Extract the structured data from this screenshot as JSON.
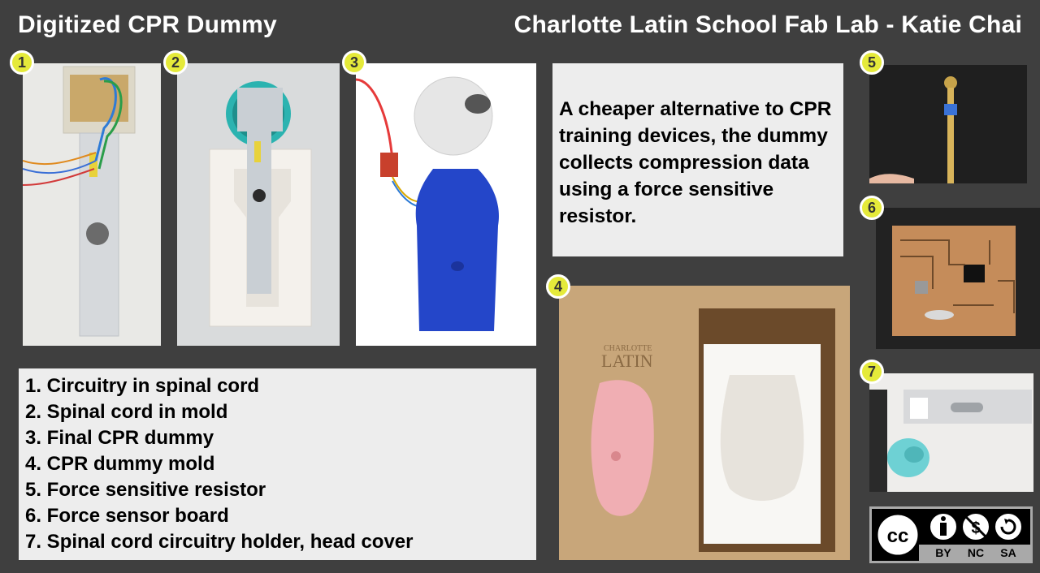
{
  "header": {
    "title_left": "Digitized CPR Dummy",
    "title_right": "Charlotte Latin School Fab Lab - Katie Chai"
  },
  "badges": [
    "1",
    "2",
    "3",
    "4",
    "5",
    "6",
    "7"
  ],
  "description": "A cheaper alternative to CPR training devices, the dummy collects compression data using a force sensitive resistor.",
  "list_items": [
    "1. Circuitry in spinal cord",
    "2. Spinal cord in mold",
    "3. Final CPR dummy",
    "4. CPR dummy mold",
    "5. Force sensitive resistor",
    "6. Force sensor board",
    "7. Spinal cord circuitry holder, head cover"
  ],
  "license": {
    "labels": [
      "BY",
      "NC",
      "SA"
    ],
    "cc_mark": "cc"
  },
  "photos": {
    "mold_label_line1": "CHARLOTTE",
    "mold_label_line2": "LATIN"
  }
}
